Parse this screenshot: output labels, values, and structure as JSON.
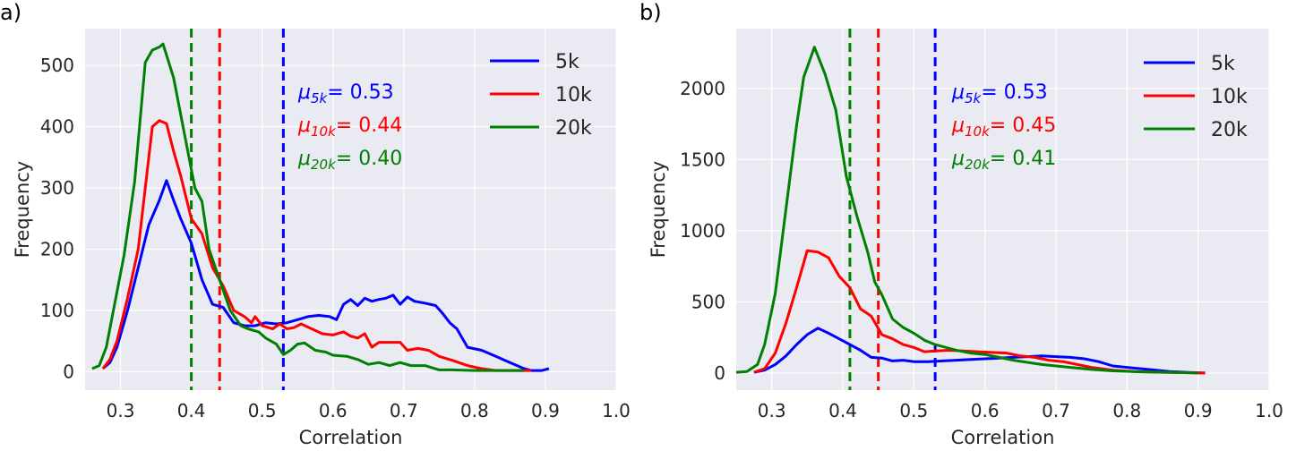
{
  "chart_data": [
    {
      "type": "line",
      "panel_label": "a)",
      "xlabel": "Correlation",
      "ylabel": "Frequency",
      "xlim": [
        0.25,
        1.0
      ],
      "ylim": [
        -30,
        560
      ],
      "xticks": [
        0.3,
        0.4,
        0.5,
        0.6,
        0.7,
        0.8,
        0.9,
        1.0
      ],
      "xtick_labels": [
        "0.3",
        "0.4",
        "0.5",
        "0.6",
        "0.7",
        "0.8",
        "0.9",
        "1.0"
      ],
      "yticks": [
        0,
        100,
        200,
        300,
        400,
        500
      ],
      "ytick_labels": [
        "0",
        "100",
        "200",
        "300",
        "400",
        "500"
      ],
      "grid": true,
      "legend": "top-right",
      "series": [
        {
          "name": "5k",
          "color": "#0000ff",
          "points": [
            [
              0.275,
              5
            ],
            [
              0.285,
              15
            ],
            [
              0.295,
              40
            ],
            [
              0.31,
              100
            ],
            [
              0.325,
              170
            ],
            [
              0.34,
              240
            ],
            [
              0.355,
              280
            ],
            [
              0.365,
              312
            ],
            [
              0.375,
              280
            ],
            [
              0.385,
              250
            ],
            [
              0.4,
              210
            ],
            [
              0.415,
              150
            ],
            [
              0.43,
              110
            ],
            [
              0.445,
              105
            ],
            [
              0.46,
              80
            ],
            [
              0.475,
              75
            ],
            [
              0.49,
              75
            ],
            [
              0.505,
              80
            ],
            [
              0.52,
              78
            ],
            [
              0.535,
              80
            ],
            [
              0.55,
              85
            ],
            [
              0.565,
              90
            ],
            [
              0.58,
              92
            ],
            [
              0.595,
              90
            ],
            [
              0.605,
              85
            ],
            [
              0.615,
              110
            ],
            [
              0.625,
              118
            ],
            [
              0.635,
              108
            ],
            [
              0.645,
              120
            ],
            [
              0.655,
              115
            ],
            [
              0.665,
              118
            ],
            [
              0.675,
              120
            ],
            [
              0.685,
              125
            ],
            [
              0.695,
              110
            ],
            [
              0.705,
              122
            ],
            [
              0.715,
              115
            ],
            [
              0.73,
              112
            ],
            [
              0.745,
              108
            ],
            [
              0.755,
              95
            ],
            [
              0.765,
              80
            ],
            [
              0.775,
              70
            ],
            [
              0.79,
              40
            ],
            [
              0.81,
              35
            ],
            [
              0.83,
              25
            ],
            [
              0.85,
              15
            ],
            [
              0.87,
              5
            ],
            [
              0.88,
              2
            ],
            [
              0.895,
              2
            ],
            [
              0.905,
              5
            ]
          ]
        },
        {
          "name": "10k",
          "color": "#ff0000",
          "points": [
            [
              0.275,
              5
            ],
            [
              0.285,
              20
            ],
            [
              0.295,
              50
            ],
            [
              0.31,
              120
            ],
            [
              0.325,
              200
            ],
            [
              0.335,
              300
            ],
            [
              0.345,
              400
            ],
            [
              0.355,
              410
            ],
            [
              0.365,
              405
            ],
            [
              0.375,
              360
            ],
            [
              0.385,
              320
            ],
            [
              0.4,
              250
            ],
            [
              0.415,
              225
            ],
            [
              0.43,
              170
            ],
            [
              0.445,
              140
            ],
            [
              0.46,
              100
            ],
            [
              0.475,
              90
            ],
            [
              0.485,
              80
            ],
            [
              0.49,
              90
            ],
            [
              0.5,
              75
            ],
            [
              0.515,
              70
            ],
            [
              0.525,
              78
            ],
            [
              0.535,
              70
            ],
            [
              0.545,
              72
            ],
            [
              0.555,
              78
            ],
            [
              0.57,
              70
            ],
            [
              0.585,
              62
            ],
            [
              0.6,
              60
            ],
            [
              0.615,
              65
            ],
            [
              0.625,
              58
            ],
            [
              0.635,
              55
            ],
            [
              0.645,
              62
            ],
            [
              0.655,
              40
            ],
            [
              0.665,
              48
            ],
            [
              0.68,
              48
            ],
            [
              0.695,
              48
            ],
            [
              0.705,
              35
            ],
            [
              0.72,
              38
            ],
            [
              0.735,
              35
            ],
            [
              0.75,
              25
            ],
            [
              0.77,
              18
            ],
            [
              0.79,
              10
            ],
            [
              0.81,
              5
            ],
            [
              0.83,
              2
            ],
            [
              0.86,
              2
            ],
            [
              0.88,
              2
            ]
          ]
        },
        {
          "name": "20k",
          "color": "#008000",
          "points": [
            [
              0.26,
              5
            ],
            [
              0.27,
              10
            ],
            [
              0.28,
              40
            ],
            [
              0.29,
              100
            ],
            [
              0.305,
              190
            ],
            [
              0.32,
              310
            ],
            [
              0.335,
              505
            ],
            [
              0.345,
              525
            ],
            [
              0.355,
              530
            ],
            [
              0.36,
              535
            ],
            [
              0.375,
              480
            ],
            [
              0.39,
              390
            ],
            [
              0.405,
              300
            ],
            [
              0.415,
              278
            ],
            [
              0.425,
              200
            ],
            [
              0.44,
              150
            ],
            [
              0.455,
              100
            ],
            [
              0.47,
              75
            ],
            [
              0.48,
              70
            ],
            [
              0.495,
              65
            ],
            [
              0.505,
              55
            ],
            [
              0.52,
              45
            ],
            [
              0.53,
              28
            ],
            [
              0.54,
              35
            ],
            [
              0.55,
              45
            ],
            [
              0.56,
              47
            ],
            [
              0.575,
              35
            ],
            [
              0.59,
              32
            ],
            [
              0.6,
              27
            ],
            [
              0.62,
              25
            ],
            [
              0.635,
              20
            ],
            [
              0.65,
              12
            ],
            [
              0.665,
              15
            ],
            [
              0.68,
              10
            ],
            [
              0.695,
              15
            ],
            [
              0.71,
              10
            ],
            [
              0.73,
              10
            ],
            [
              0.75,
              3
            ],
            [
              0.77,
              3
            ],
            [
              0.8,
              2
            ],
            [
              0.83,
              2
            ],
            [
              0.87,
              2
            ]
          ]
        }
      ],
      "mean_lines": [
        {
          "series": "5k",
          "x": 0.53,
          "color": "#0000ff"
        },
        {
          "series": "10k",
          "x": 0.44,
          "color": "#ff0000"
        },
        {
          "series": "20k",
          "x": 0.4,
          "color": "#008000"
        }
      ],
      "annotations": [
        {
          "prefix": "μ",
          "subscript": "5k",
          "value": "= 0.53",
          "color": "#0000ff"
        },
        {
          "prefix": "μ",
          "subscript": "10k",
          "value": "= 0.44",
          "color": "#ff0000"
        },
        {
          "prefix": "μ",
          "subscript": "20k",
          "value": "= 0.40",
          "color": "#008000"
        }
      ]
    },
    {
      "type": "line",
      "panel_label": "b)",
      "xlabel": "Correlation",
      "ylabel": "Frequency",
      "xlim": [
        0.25,
        1.0
      ],
      "ylim": [
        -120,
        2420
      ],
      "xticks": [
        0.3,
        0.4,
        0.5,
        0.6,
        0.7,
        0.8,
        0.9,
        1.0
      ],
      "xtick_labels": [
        "0.3",
        "0.4",
        "0.5",
        "0.6",
        "0.7",
        "0.8",
        "0.9",
        "1.0"
      ],
      "yticks": [
        0,
        500,
        1000,
        1500,
        2000
      ],
      "ytick_labels": [
        "0",
        "500",
        "1000",
        "1500",
        "2000"
      ],
      "grid": true,
      "legend": "top-right",
      "series": [
        {
          "name": "5k",
          "color": "#0000ff",
          "points": [
            [
              0.275,
              5
            ],
            [
              0.29,
              20
            ],
            [
              0.305,
              60
            ],
            [
              0.32,
              120
            ],
            [
              0.335,
              200
            ],
            [
              0.35,
              270
            ],
            [
              0.365,
              315
            ],
            [
              0.38,
              280
            ],
            [
              0.395,
              240
            ],
            [
              0.41,
              200
            ],
            [
              0.425,
              160
            ],
            [
              0.44,
              110
            ],
            [
              0.455,
              105
            ],
            [
              0.47,
              85
            ],
            [
              0.485,
              90
            ],
            [
              0.5,
              80
            ],
            [
              0.52,
              80
            ],
            [
              0.54,
              85
            ],
            [
              0.56,
              90
            ],
            [
              0.58,
              95
            ],
            [
              0.6,
              100
            ],
            [
              0.62,
              105
            ],
            [
              0.64,
              110
            ],
            [
              0.66,
              115
            ],
            [
              0.68,
              120
            ],
            [
              0.7,
              115
            ],
            [
              0.72,
              110
            ],
            [
              0.74,
              100
            ],
            [
              0.76,
              80
            ],
            [
              0.78,
              50
            ],
            [
              0.8,
              40
            ],
            [
              0.83,
              25
            ],
            [
              0.86,
              10
            ],
            [
              0.89,
              3
            ],
            [
              0.91,
              0
            ]
          ]
        },
        {
          "name": "10k",
          "color": "#ff0000",
          "points": [
            [
              0.275,
              5
            ],
            [
              0.29,
              30
            ],
            [
              0.305,
              140
            ],
            [
              0.32,
              350
            ],
            [
              0.335,
              600
            ],
            [
              0.35,
              860
            ],
            [
              0.365,
              850
            ],
            [
              0.38,
              810
            ],
            [
              0.395,
              680
            ],
            [
              0.41,
              600
            ],
            [
              0.425,
              450
            ],
            [
              0.44,
              400
            ],
            [
              0.455,
              270
            ],
            [
              0.47,
              240
            ],
            [
              0.485,
              200
            ],
            [
              0.5,
              180
            ],
            [
              0.515,
              150
            ],
            [
              0.53,
              155
            ],
            [
              0.55,
              160
            ],
            [
              0.57,
              155
            ],
            [
              0.59,
              150
            ],
            [
              0.61,
              145
            ],
            [
              0.63,
              140
            ],
            [
              0.65,
              120
            ],
            [
              0.67,
              110
            ],
            [
              0.69,
              90
            ],
            [
              0.71,
              80
            ],
            [
              0.73,
              60
            ],
            [
              0.75,
              40
            ],
            [
              0.78,
              20
            ],
            [
              0.81,
              10
            ],
            [
              0.85,
              5
            ],
            [
              0.89,
              2
            ],
            [
              0.91,
              0
            ]
          ]
        },
        {
          "name": "20k",
          "color": "#008000",
          "points": [
            [
              0.25,
              5
            ],
            [
              0.265,
              10
            ],
            [
              0.28,
              60
            ],
            [
              0.29,
              200
            ],
            [
              0.305,
              560
            ],
            [
              0.32,
              1150
            ],
            [
              0.335,
              1740
            ],
            [
              0.345,
              2080
            ],
            [
              0.36,
              2290
            ],
            [
              0.375,
              2100
            ],
            [
              0.39,
              1850
            ],
            [
              0.405,
              1380
            ],
            [
              0.42,
              1100
            ],
            [
              0.435,
              850
            ],
            [
              0.445,
              640
            ],
            [
              0.455,
              550
            ],
            [
              0.47,
              380
            ],
            [
              0.485,
              320
            ],
            [
              0.5,
              280
            ],
            [
              0.515,
              230
            ],
            [
              0.53,
              200
            ],
            [
              0.545,
              180
            ],
            [
              0.56,
              160
            ],
            [
              0.58,
              140
            ],
            [
              0.6,
              130
            ],
            [
              0.62,
              110
            ],
            [
              0.64,
              90
            ],
            [
              0.66,
              75
            ],
            [
              0.68,
              60
            ],
            [
              0.7,
              50
            ],
            [
              0.72,
              40
            ],
            [
              0.75,
              25
            ],
            [
              0.78,
              15
            ],
            [
              0.82,
              8
            ],
            [
              0.86,
              5
            ],
            [
              0.9,
              0
            ]
          ]
        }
      ],
      "mean_lines": [
        {
          "series": "5k",
          "x": 0.53,
          "color": "#0000ff"
        },
        {
          "series": "10k",
          "x": 0.45,
          "color": "#ff0000"
        },
        {
          "series": "20k",
          "x": 0.41,
          "color": "#008000"
        }
      ],
      "annotations": [
        {
          "prefix": "μ",
          "subscript": "5k",
          "value": "= 0.53",
          "color": "#0000ff"
        },
        {
          "prefix": "μ",
          "subscript": "10k",
          "value": "= 0.45",
          "color": "#ff0000"
        },
        {
          "prefix": "μ",
          "subscript": "20k",
          "value": "= 0.41",
          "color": "#008000"
        }
      ]
    }
  ]
}
